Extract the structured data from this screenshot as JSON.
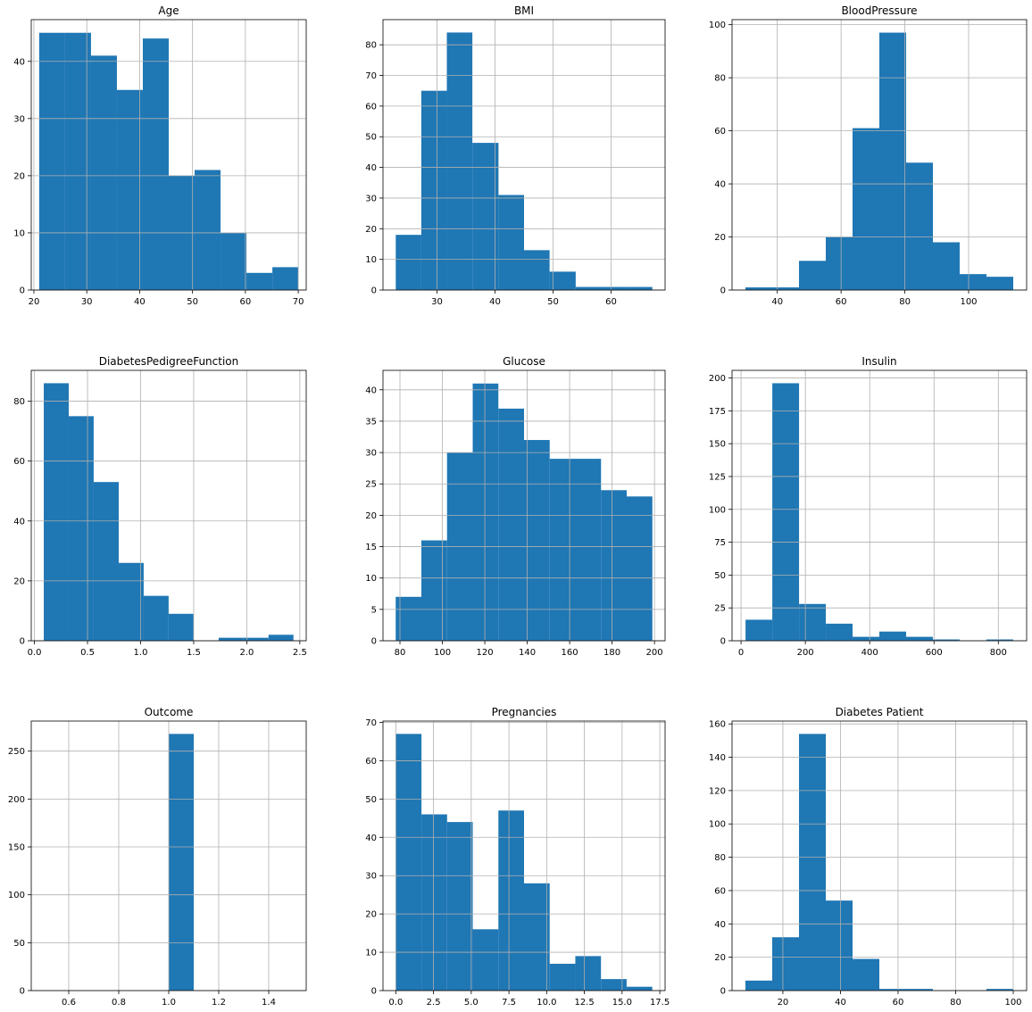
{
  "chart_data": [
    {
      "type": "bar",
      "title": "Age",
      "bins": [
        [
          21,
          25.9,
          45
        ],
        [
          25.9,
          30.8,
          45
        ],
        [
          30.8,
          35.7,
          41
        ],
        [
          35.7,
          40.6,
          35
        ],
        [
          40.6,
          45.5,
          44
        ],
        [
          45.5,
          50.4,
          20
        ],
        [
          50.4,
          55.3,
          21
        ],
        [
          55.3,
          60.2,
          10
        ],
        [
          60.2,
          65.1,
          3
        ],
        [
          65.1,
          70,
          4
        ]
      ],
      "xlim": [
        19.5,
        71.5
      ],
      "ylim": [
        0,
        47.3
      ],
      "xticks": [
        20,
        30,
        40,
        50,
        60,
        70
      ],
      "xticklabels": [
        "20",
        "30",
        "40",
        "50",
        "60",
        "70"
      ],
      "yticks": [
        0,
        10,
        20,
        30,
        40
      ],
      "yticklabels": [
        "0",
        "10",
        "20",
        "30",
        "40"
      ],
      "grid": true
    },
    {
      "type": "bar",
      "title": "BMI",
      "bins": [
        [
          22.9,
          27.3,
          18
        ],
        [
          27.3,
          31.7,
          65
        ],
        [
          31.7,
          36.1,
          84
        ],
        [
          36.1,
          40.6,
          48
        ],
        [
          40.6,
          45.0,
          31
        ],
        [
          45.0,
          49.4,
          13
        ],
        [
          49.4,
          53.9,
          6
        ],
        [
          53.9,
          58.3,
          1
        ],
        [
          58.3,
          62.7,
          1
        ],
        [
          62.7,
          67.1,
          1
        ]
      ],
      "xlim": [
        20.7,
        69.3
      ],
      "ylim": [
        0,
        88.2
      ],
      "xticks": [
        30,
        40,
        50,
        60
      ],
      "xticklabels": [
        "30",
        "40",
        "50",
        "60"
      ],
      "yticks": [
        0,
        10,
        20,
        30,
        40,
        50,
        60,
        70,
        80
      ],
      "yticklabels": [
        "0",
        "10",
        "20",
        "30",
        "40",
        "50",
        "60",
        "70",
        "80"
      ],
      "grid": true
    },
    {
      "type": "bar",
      "title": "BloodPressure",
      "bins": [
        [
          30,
          38.4,
          1
        ],
        [
          38.4,
          46.8,
          1
        ],
        [
          46.8,
          55.2,
          11
        ],
        [
          55.2,
          63.6,
          20
        ],
        [
          63.6,
          72,
          61
        ],
        [
          72,
          80.4,
          97
        ],
        [
          80.4,
          88.8,
          48
        ],
        [
          88.8,
          97.2,
          18
        ],
        [
          97.2,
          105.6,
          6
        ],
        [
          105.6,
          114,
          5
        ]
      ],
      "xlim": [
        25.8,
        118.2
      ],
      "ylim": [
        0,
        101.9
      ],
      "xticks": [
        40,
        60,
        80,
        100
      ],
      "xticklabels": [
        "40",
        "60",
        "80",
        "100"
      ],
      "yticks": [
        0,
        20,
        40,
        60,
        80,
        100
      ],
      "yticklabels": [
        "0",
        "20",
        "40",
        "60",
        "80",
        "100"
      ],
      "grid": true
    },
    {
      "type": "bar",
      "title": "DiabetesPedigreeFunction",
      "bins": [
        [
          0.088,
          0.323,
          86
        ],
        [
          0.323,
          0.558,
          75
        ],
        [
          0.558,
          0.794,
          53
        ],
        [
          0.794,
          1.029,
          26
        ],
        [
          1.029,
          1.264,
          15
        ],
        [
          1.264,
          1.5,
          9
        ],
        [
          1.5,
          1.735,
          0
        ],
        [
          1.735,
          1.97,
          1
        ],
        [
          1.97,
          2.205,
          1
        ],
        [
          2.205,
          2.44,
          2
        ]
      ],
      "xlim": [
        -0.03,
        2.56
      ],
      "ylim": [
        0,
        90.3
      ],
      "xticks": [
        0,
        0.5,
        1,
        1.5,
        2,
        2.5
      ],
      "xticklabels": [
        "0.0",
        "0.5",
        "1.0",
        "1.5",
        "2.0",
        "2.5"
      ],
      "yticks": [
        0,
        20,
        40,
        60,
        80
      ],
      "yticklabels": [
        "0",
        "20",
        "40",
        "60",
        "80"
      ],
      "grid": true
    },
    {
      "type": "bar",
      "title": "Glucose",
      "bins": [
        [
          78,
          90.1,
          7
        ],
        [
          90.1,
          102.2,
          16
        ],
        [
          102.2,
          114.3,
          30
        ],
        [
          114.3,
          126.4,
          41
        ],
        [
          126.4,
          138.5,
          37
        ],
        [
          138.5,
          150.6,
          32
        ],
        [
          150.6,
          162.7,
          29
        ],
        [
          162.7,
          174.8,
          29
        ],
        [
          174.8,
          186.9,
          24
        ],
        [
          186.9,
          199,
          23
        ]
      ],
      "xlim": [
        72,
        205
      ],
      "ylim": [
        0,
        43.1
      ],
      "xticks": [
        80,
        100,
        120,
        140,
        160,
        180,
        200
      ],
      "xticklabels": [
        "80",
        "100",
        "120",
        "140",
        "160",
        "180",
        "200"
      ],
      "yticks": [
        0,
        5,
        10,
        15,
        20,
        25,
        30,
        35,
        40
      ],
      "yticklabels": [
        "0",
        "5",
        "10",
        "15",
        "20",
        "25",
        "30",
        "35",
        "40"
      ],
      "grid": true
    },
    {
      "type": "bar",
      "title": "Insulin",
      "bins": [
        [
          14,
          97.2,
          16
        ],
        [
          97.2,
          180.4,
          196
        ],
        [
          180.4,
          263.6,
          28
        ],
        [
          263.6,
          346.8,
          13
        ],
        [
          346.8,
          430,
          3
        ],
        [
          430,
          513.2,
          7
        ],
        [
          513.2,
          596.4,
          3
        ],
        [
          596.4,
          679.6,
          1
        ],
        [
          679.6,
          762.8,
          0
        ],
        [
          762.8,
          846,
          1
        ]
      ],
      "xlim": [
        -28,
        888
      ],
      "ylim": [
        0,
        205.8
      ],
      "xticks": [
        0,
        200,
        400,
        600,
        800
      ],
      "xticklabels": [
        "0",
        "200",
        "400",
        "600",
        "800"
      ],
      "yticks": [
        0,
        25,
        50,
        75,
        100,
        125,
        150,
        175,
        200
      ],
      "yticklabels": [
        "0",
        "25",
        "50",
        "75",
        "100",
        "125",
        "150",
        "175",
        "200"
      ],
      "grid": true
    },
    {
      "type": "bar",
      "title": "Outcome",
      "bins": [
        [
          1.0,
          1.1,
          268
        ]
      ],
      "xlim": [
        0.45,
        1.55
      ],
      "ylim": [
        0,
        281.4
      ],
      "xticks": [
        0.6,
        0.8,
        1.0,
        1.2,
        1.4
      ],
      "xticklabels": [
        "0.6",
        "0.8",
        "1.0",
        "1.2",
        "1.4"
      ],
      "yticks": [
        0,
        50,
        100,
        150,
        200,
        250
      ],
      "yticklabels": [
        "0",
        "50",
        "100",
        "150",
        "200",
        "250"
      ],
      "grid": true
    },
    {
      "type": "bar",
      "title": "Pregnancies",
      "bins": [
        [
          0,
          1.7,
          67
        ],
        [
          1.7,
          3.4,
          46
        ],
        [
          3.4,
          5.1,
          44
        ],
        [
          5.1,
          6.8,
          16
        ],
        [
          6.8,
          8.5,
          47
        ],
        [
          8.5,
          10.2,
          28
        ],
        [
          10.2,
          11.9,
          7
        ],
        [
          11.9,
          13.6,
          9
        ],
        [
          13.6,
          15.3,
          3
        ],
        [
          15.3,
          17,
          1
        ]
      ],
      "xlim": [
        -0.85,
        17.85
      ],
      "ylim": [
        0,
        70.35
      ],
      "xticks": [
        0,
        2.5,
        5,
        7.5,
        10,
        12.5,
        15,
        17.5
      ],
      "xticklabels": [
        "0.0",
        "2.5",
        "5.0",
        "7.5",
        "10.0",
        "12.5",
        "15.0",
        "17.5"
      ],
      "yticks": [
        0,
        10,
        20,
        30,
        40,
        50,
        60,
        70
      ],
      "yticklabels": [
        "0",
        "10",
        "20",
        "30",
        "40",
        "50",
        "60",
        "70"
      ],
      "grid": true
    },
    {
      "type": "bar",
      "title": "Diabetes Patient",
      "bins": [
        [
          7,
          16.3,
          6
        ],
        [
          16.3,
          25.6,
          32
        ],
        [
          25.6,
          34.9,
          154
        ],
        [
          34.9,
          44.2,
          54
        ],
        [
          44.2,
          53.5,
          19
        ],
        [
          53.5,
          62.8,
          1
        ],
        [
          62.8,
          72.1,
          1
        ],
        [
          72.1,
          81.4,
          0
        ],
        [
          81.4,
          90.7,
          0
        ],
        [
          90.7,
          100,
          1
        ]
      ],
      "xlim": [
        2.35,
        104.65
      ],
      "ylim": [
        0,
        161.7
      ],
      "xticks": [
        20,
        40,
        60,
        80,
        100
      ],
      "xticklabels": [
        "20",
        "40",
        "60",
        "80",
        "100"
      ],
      "yticks": [
        0,
        20,
        40,
        60,
        80,
        100,
        120,
        140,
        160
      ],
      "yticklabels": [
        "0",
        "20",
        "40",
        "60",
        "80",
        "100",
        "120",
        "140",
        "160"
      ],
      "grid": true
    }
  ],
  "colors": {
    "bar": "#1f77b4",
    "grid": "#b0b0b0",
    "axis": "#000000",
    "background": "#ffffff"
  }
}
